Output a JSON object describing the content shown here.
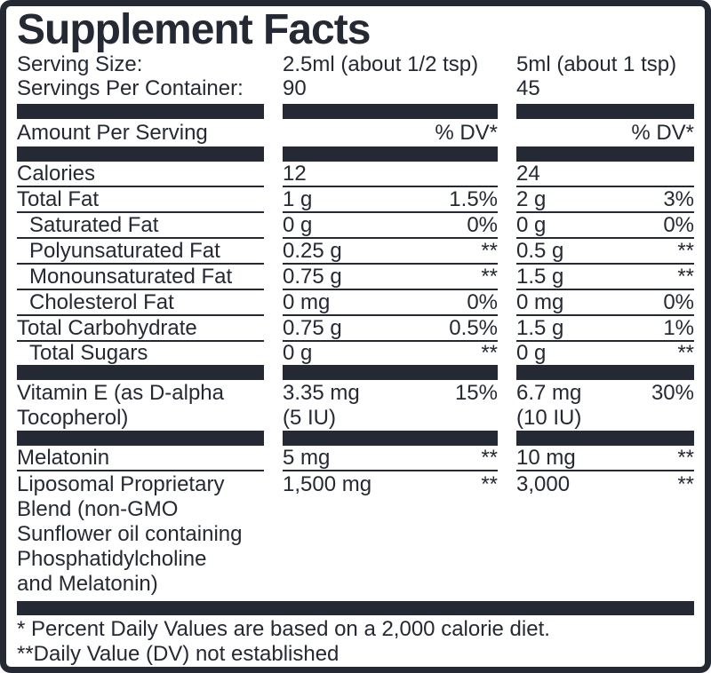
{
  "title": "Supplement Facts",
  "colors": {
    "ink": "#252933",
    "background": "#ffffff"
  },
  "serving": {
    "size_label": "Serving Size:",
    "size_col2": "2.5ml (about 1/2 tsp)",
    "size_col3": "5ml (about 1 tsp)",
    "container_label": "Servings Per Container:",
    "container_col2": "90",
    "container_col3": "45"
  },
  "header": {
    "amount_label": "Amount Per Serving",
    "dv_label_col2": "% DV*",
    "dv_label_col3": "% DV*"
  },
  "rows": [
    {
      "label": "Calories",
      "col2_amount": "12",
      "col2_dv": "",
      "col3_amount": "24",
      "col3_dv": ""
    },
    {
      "label": "Total Fat",
      "col2_amount": "1 g",
      "col2_dv": "1.5%",
      "col3_amount": "2 g",
      "col3_dv": "3%"
    },
    {
      "label": "Saturated Fat",
      "col2_amount": "0 g",
      "col2_dv": "0%",
      "col3_amount": "0 g",
      "col3_dv": "0%"
    },
    {
      "label": "Polyunsaturated Fat",
      "col2_amount": "0.25 g",
      "col2_dv": "**",
      "col3_amount": "0.5 g",
      "col3_dv": "**"
    },
    {
      "label": "Monounsaturated Fat",
      "col2_amount": "0.75 g",
      "col2_dv": "**",
      "col3_amount": "1.5 g",
      "col3_dv": "**"
    },
    {
      "label": "Cholesterol Fat",
      "col2_amount": "0 mg",
      "col2_dv": "0%",
      "col3_amount": "0 mg",
      "col3_dv": "0%"
    },
    {
      "label": "Total Carbohydrate",
      "col2_amount": "0.75 g",
      "col2_dv": "0.5%",
      "col3_amount": "1.5 g",
      "col3_dv": "1%"
    },
    {
      "label": "Total Sugars",
      "col2_amount": "0 g",
      "col2_dv": "**",
      "col3_amount": "0 g",
      "col3_dv": "**"
    },
    {
      "label": "Melatonin",
      "col2_amount": "5 mg",
      "col2_dv": "**",
      "col3_amount": "10 mg",
      "col3_dv": "**"
    }
  ],
  "vitamin_e": {
    "label_line1": "Vitamin E (as D-alpha",
    "label_line2": "Tocopherol)",
    "col2_amount": "3.35 mg",
    "col2_dv": "15%",
    "col2_unit": "(5 IU)",
    "col3_amount": "6.7 mg",
    "col3_dv": "30%",
    "col3_unit": "(10 IU)"
  },
  "liposomal": {
    "label_lines": [
      "Liposomal Proprietary",
      "Blend (non-GMO",
      "Sunflower oil containing",
      "Phosphatidylcholine",
      "and Melatonin)"
    ],
    "col2_amount": "1,500 mg",
    "col2_dv": "**",
    "col3_amount": "3,000",
    "col3_dv": "**"
  },
  "footnotes": {
    "line1": "* Percent Daily Values are based on a 2,000 calorie diet.",
    "line2": "**Daily Value (DV) not established"
  }
}
